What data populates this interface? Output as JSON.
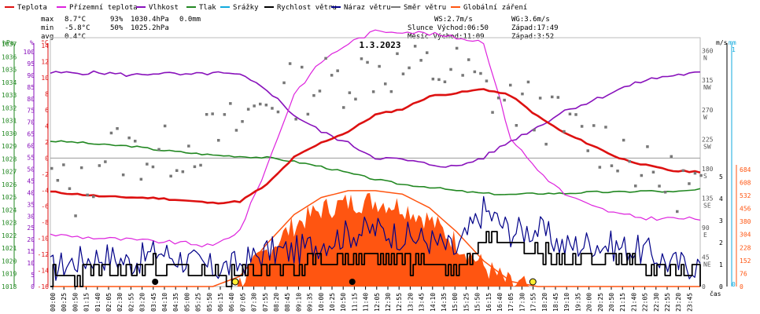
{
  "chart_data": {
    "type": "line",
    "title": "1.3.2023",
    "legend": [
      {
        "label": "Teplota",
        "color": "#dd1111"
      },
      {
        "label": "Přízemní teplota",
        "color": "#dd22dd"
      },
      {
        "label": "Vlhkost",
        "color": "#8811bb"
      },
      {
        "label": "Tlak",
        "color": "#228822"
      },
      {
        "label": "Srážky",
        "color": "#11aadd"
      },
      {
        "label": "Rychlost větru",
        "color": "#000000"
      },
      {
        "label": "Náraz větru",
        "color": "#000088"
      },
      {
        "label": "Směr větru",
        "color": "#777777"
      },
      {
        "label": "Globální záření",
        "color": "#ff5511"
      }
    ],
    "stats": {
      "max_label": "max",
      "max_temp": "8.7°C",
      "max_hum": "93%",
      "max_press": "1030.4hPa",
      "max_rain": "0.0mm",
      "min_label": "min",
      "min_temp": "-5.8°C",
      "min_hum": "50%",
      "min_press": "1025.2hPa",
      "avg_label": "avg",
      "avg_temp": "0.4°C"
    },
    "info": {
      "ws": "WS:2.7m/s",
      "wg": "WG:3.6m/s",
      "sun": "Slunce Východ:06:50",
      "sun_set": "Západ:17:49",
      "moon": "Měsíc  Východ:11:09",
      "moon_set": "Západ:3:52"
    },
    "axis_units": {
      "hpa": "hPa",
      "pct": "%",
      "temp": "°C",
      "wind": "m/s",
      "rain": "mm",
      "rad": "W/m2",
      "xlabel": "čas"
    },
    "axis_ticks": {
      "hpa": [
        "1037",
        "1036",
        "1035",
        "1034",
        "1033",
        "1032",
        "1031",
        "1030",
        "1029",
        "1028",
        "1027",
        "1026",
        "1025",
        "1024",
        "1023",
        "1022",
        "1021",
        "1020",
        "1019",
        "1018"
      ],
      "pct": [
        "100",
        "95",
        "90",
        "85",
        "80",
        "75",
        "70",
        "65",
        "60",
        "55",
        "50",
        "45",
        "40",
        "35",
        "30",
        "25",
        "20",
        "15",
        "10",
        "5",
        "0"
      ],
      "temp": [
        "14",
        "12",
        "10",
        "8",
        "6",
        "4",
        "2",
        "0",
        "-2",
        "-4",
        "-6",
        "-8",
        "-10",
        "-12",
        "-14",
        "-16"
      ],
      "dir": [
        "360 N",
        "315 NW",
        "270 W",
        "225 SW",
        "180 S",
        "135 SE",
        "90 E",
        "45 NE",
        "0"
      ],
      "wind": [
        "5",
        "4",
        "3",
        "2",
        "1",
        "0"
      ],
      "rain": [
        "1",
        "0"
      ],
      "rad": [
        "684",
        "608",
        "532",
        "456",
        "380",
        "304",
        "228",
        "152",
        "76",
        "0"
      ]
    },
    "x_ticks": [
      "00:00",
      "00:25",
      "00:50",
      "01:15",
      "01:40",
      "02:05",
      "02:30",
      "02:55",
      "03:20",
      "03:45",
      "04:10",
      "04:35",
      "05:00",
      "05:25",
      "05:50",
      "06:15",
      "06:40",
      "07:05",
      "07:30",
      "07:55",
      "08:20",
      "08:45",
      "09:10",
      "09:35",
      "10:00",
      "10:25",
      "10:50",
      "11:15",
      "11:40",
      "12:05",
      "12:30",
      "12:55",
      "13:20",
      "13:45",
      "14:10",
      "14:35",
      "15:00",
      "15:25",
      "15:50",
      "16:15",
      "16:40",
      "17:05",
      "17:30",
      "17:55",
      "18:20",
      "18:45",
      "19:10",
      "19:35",
      "20:00",
      "20:25",
      "20:50",
      "21:15",
      "21:40",
      "22:05",
      "22:30",
      "22:55",
      "23:20",
      "23:45"
    ],
    "hours": [
      0,
      1,
      2,
      3,
      4,
      5,
      6,
      7,
      8,
      9,
      10,
      11,
      12,
      13,
      14,
      15,
      16,
      17,
      18,
      19,
      20,
      21,
      22,
      23,
      24
    ],
    "temperature_c": [
      -4.2,
      -4.5,
      -4.8,
      -4.9,
      -5.0,
      -5.3,
      -5.6,
      -5.4,
      -3.3,
      0.1,
      1.9,
      3.3,
      5.4,
      6.1,
      7.7,
      8.1,
      8.6,
      7.8,
      5.2,
      3.1,
      1.6,
      0.0,
      -0.9,
      -1.6,
      -1.7
    ],
    "humidity_pct": [
      91,
      91,
      91,
      90,
      91,
      90,
      91,
      90,
      84,
      73,
      66,
      61,
      55,
      54,
      52,
      51,
      55,
      62,
      68,
      75,
      79,
      84,
      88,
      90,
      91
    ],
    "pressure_hpa": [
      1029.4,
      1029.3,
      1029.1,
      1029.0,
      1028.7,
      1028.5,
      1028.3,
      1028.2,
      1028.1,
      1027.8,
      1027.4,
      1026.9,
      1026.4,
      1026.0,
      1025.8,
      1025.5,
      1025.3,
      1025.2,
      1025.3,
      1025.3,
      1025.4,
      1025.4,
      1025.5,
      1025.4,
      1025.6
    ],
    "ground_temp_c": [
      -9.5,
      -9.8,
      -10.0,
      -10.2,
      -10.4,
      -10.6,
      -11.0,
      -9.0,
      -1.0,
      8.0,
      12.0,
      14.3,
      15.8,
      15.8,
      15.5,
      15.0,
      14.5,
      2.5,
      -1.5,
      -4.5,
      -6.0,
      -7.0,
      -7.5,
      -7.5,
      -7.6
    ],
    "wind_speed_ms": [
      0.4,
      0.6,
      0.8,
      0.6,
      1.0,
      0.6,
      0.4,
      0.6,
      1.0,
      0.8,
      1.2,
      1.4,
      1.3,
      1.2,
      1.0,
      0.8,
      2.2,
      2.3,
      1.6,
      1.2,
      1.3,
      1.1,
      1.0,
      0.6,
      0.5
    ],
    "wind_gust_ms": [
      0.8,
      1.2,
      1.4,
      1.1,
      1.6,
      1.2,
      0.8,
      1.0,
      1.6,
      1.6,
      2.0,
      2.4,
      2.6,
      2.3,
      2.1,
      1.6,
      3.5,
      2.5,
      2.6,
      1.8,
      2.0,
      1.8,
      1.6,
      1.0,
      1.0
    ],
    "wind_dir_deg": [
      160,
      140,
      210,
      205,
      200,
      215,
      230,
      250,
      290,
      300,
      310,
      320,
      335,
      330,
      330,
      330,
      300,
      280,
      270,
      240,
      225,
      215,
      170,
      160,
      150
    ],
    "solar_radiation_wm2": [
      0,
      0,
      0,
      0,
      0,
      0,
      0,
      20,
      210,
      360,
      450,
      490,
      500,
      470,
      390,
      260,
      120,
      10,
      0,
      0,
      0,
      0,
      0,
      0,
      0
    ],
    "clear_sky_radiation_wm2": [
      0,
      0,
      0,
      0,
      0,
      0,
      0,
      60,
      250,
      420,
      520,
      560,
      560,
      540,
      460,
      320,
      150,
      30,
      0,
      0,
      0,
      0,
      0,
      0,
      0
    ]
  }
}
